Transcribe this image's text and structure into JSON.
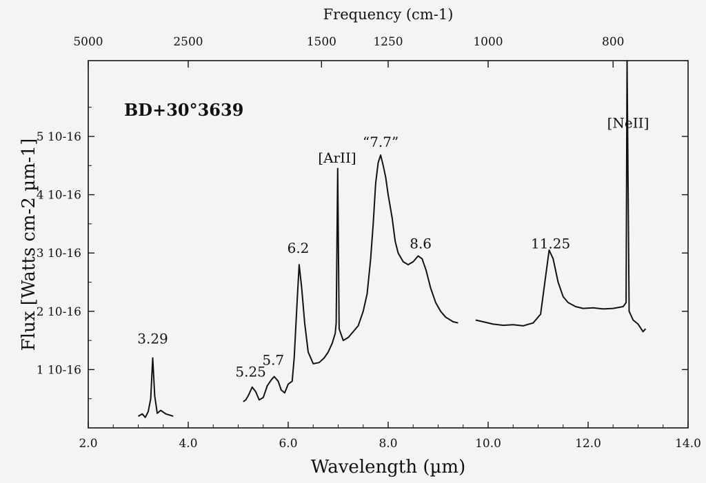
{
  "chart_data": {
    "type": "line",
    "title": "BD+30°3639",
    "xlabel": "Wavelength (µm)",
    "ylabel": "Flux [Watts cm-2 µm-1]",
    "top_xlabel": "Frequency (cm-1)",
    "xlim": [
      2.0,
      14.0
    ],
    "ylim": [
      0,
      6.3e-16
    ],
    "x_ticks": [
      "2.0",
      "4.0",
      "6.0",
      "8.0",
      "10.0",
      "12.0",
      "14.0"
    ],
    "y_ticks": [
      {
        "value": 1e-16,
        "label": "1 10-16"
      },
      {
        "value": 2e-16,
        "label": "2 10-16"
      },
      {
        "value": 3e-16,
        "label": "3 10-16"
      },
      {
        "value": 4e-16,
        "label": "4 10-16"
      },
      {
        "value": 5e-16,
        "label": "5 10-16"
      }
    ],
    "top_ticks": [
      {
        "wavenumber": 5000,
        "label": "5000"
      },
      {
        "wavenumber": 2500,
        "label": "2500"
      },
      {
        "wavenumber": 1500,
        "label": "1500"
      },
      {
        "wavenumber": 1250,
        "label": "1250"
      },
      {
        "wavenumber": 1000,
        "label": "1000"
      },
      {
        "wavenumber": 800,
        "label": "800"
      }
    ],
    "annotations": [
      {
        "text": "3.29",
        "x": 3.29,
        "y": 1.45e-16
      },
      {
        "text": "5.25",
        "x": 5.25,
        "y": 8.8e-17
      },
      {
        "text": "5.7",
        "x": 5.7,
        "y": 1.08e-16
      },
      {
        "text": "6.2",
        "x": 6.2,
        "y": 3e-16
      },
      {
        "text": "[ArII]",
        "x": 6.98,
        "y": 4.55e-16
      },
      {
        "text": "“7.7”",
        "x": 7.85,
        "y": 4.82e-16
      },
      {
        "text": "8.6",
        "x": 8.65,
        "y": 3.08e-16
      },
      {
        "text": "11.25",
        "x": 11.25,
        "y": 3.08e-16
      },
      {
        "text": "[NeII]",
        "x": 12.8,
        "y": 5.15e-16
      }
    ],
    "grid": false,
    "series": [
      {
        "segments": [
          [
            [
              3.0,
              2e-17
            ],
            [
              3.08,
              2.4e-17
            ],
            [
              3.14,
              1.8e-17
            ],
            [
              3.2,
              2.8e-17
            ],
            [
              3.25,
              5e-17
            ],
            [
              3.29,
              1.2e-16
            ],
            [
              3.33,
              5.5e-17
            ],
            [
              3.38,
              2.5e-17
            ],
            [
              3.45,
              3e-17
            ],
            [
              3.55,
              2.4e-17
            ],
            [
              3.7,
              2e-17
            ]
          ],
          [
            [
              5.1,
              4.5e-17
            ],
            [
              5.15,
              4.8e-17
            ],
            [
              5.2,
              5.5e-17
            ],
            [
              5.28,
              7e-17
            ],
            [
              5.35,
              6.2e-17
            ],
            [
              5.42,
              4.8e-17
            ],
            [
              5.5,
              5.2e-17
            ],
            [
              5.58,
              7.2e-17
            ],
            [
              5.66,
              8.2e-17
            ],
            [
              5.72,
              8.8e-17
            ],
            [
              5.8,
              8e-17
            ],
            [
              5.86,
              6.5e-17
            ],
            [
              5.93,
              6e-17
            ],
            [
              6.0,
              7.5e-17
            ],
            [
              6.08,
              8e-17
            ],
            [
              6.12,
              1.2e-16
            ],
            [
              6.18,
              2.2e-16
            ],
            [
              6.22,
              2.8e-16
            ],
            [
              6.27,
              2.4e-16
            ],
            [
              6.33,
              1.8e-16
            ],
            [
              6.4,
              1.3e-16
            ],
            [
              6.5,
              1.1e-16
            ],
            [
              6.62,
              1.12e-16
            ],
            [
              6.72,
              1.2e-16
            ],
            [
              6.8,
              1.3e-16
            ],
            [
              6.88,
              1.45e-16
            ],
            [
              6.94,
              1.62e-16
            ],
            [
              6.96,
              1.8e-16
            ],
            [
              6.99,
              4.45e-16
            ],
            [
              7.02,
              1.7e-16
            ],
            [
              7.1,
              1.5e-16
            ],
            [
              7.2,
              1.55e-16
            ],
            [
              7.3,
              1.65e-16
            ],
            [
              7.4,
              1.75e-16
            ],
            [
              7.5,
              2e-16
            ],
            [
              7.58,
              2.3e-16
            ],
            [
              7.65,
              2.9e-16
            ],
            [
              7.7,
              3.5e-16
            ],
            [
              7.75,
              4.2e-16
            ],
            [
              7.8,
              4.55e-16
            ],
            [
              7.85,
              4.68e-16
            ],
            [
              7.9,
              4.5e-16
            ],
            [
              7.95,
              4.3e-16
            ],
            [
              8.0,
              4e-16
            ],
            [
              8.08,
              3.6e-16
            ],
            [
              8.14,
              3.2e-16
            ],
            [
              8.2,
              3e-16
            ],
            [
              8.3,
              2.85e-16
            ],
            [
              8.4,
              2.8e-16
            ],
            [
              8.5,
              2.85e-16
            ],
            [
              8.6,
              2.95e-16
            ],
            [
              8.68,
              2.9e-16
            ],
            [
              8.76,
              2.7e-16
            ],
            [
              8.85,
              2.4e-16
            ],
            [
              8.95,
              2.15e-16
            ],
            [
              9.05,
              2e-16
            ],
            [
              9.15,
              1.9e-16
            ],
            [
              9.3,
              1.82e-16
            ],
            [
              9.4,
              1.8e-16
            ]
          ],
          [
            [
              9.75,
              1.85e-16
            ],
            [
              9.9,
              1.82e-16
            ],
            [
              10.1,
              1.78e-16
            ],
            [
              10.3,
              1.76e-16
            ],
            [
              10.5,
              1.77e-16
            ],
            [
              10.7,
              1.75e-16
            ],
            [
              10.9,
              1.8e-16
            ],
            [
              11.05,
              1.95e-16
            ],
            [
              11.15,
              2.6e-16
            ],
            [
              11.22,
              3.05e-16
            ],
            [
              11.3,
              2.9e-16
            ],
            [
              11.4,
              2.5e-16
            ],
            [
              11.5,
              2.25e-16
            ],
            [
              11.6,
              2.15e-16
            ],
            [
              11.75,
              2.08e-16
            ],
            [
              11.9,
              2.05e-16
            ],
            [
              12.1,
              2.06e-16
            ],
            [
              12.3,
              2.04e-16
            ],
            [
              12.5,
              2.05e-16
            ],
            [
              12.7,
              2.08e-16
            ],
            [
              12.76,
              2.15e-16
            ],
            [
              12.78,
              6.3e-16
            ],
            [
              12.82,
              2e-16
            ],
            [
              12.9,
              1.85e-16
            ],
            [
              13.0,
              1.78e-16
            ],
            [
              13.1,
              1.65e-16
            ],
            [
              13.15,
              1.7e-16
            ]
          ]
        ]
      }
    ]
  }
}
